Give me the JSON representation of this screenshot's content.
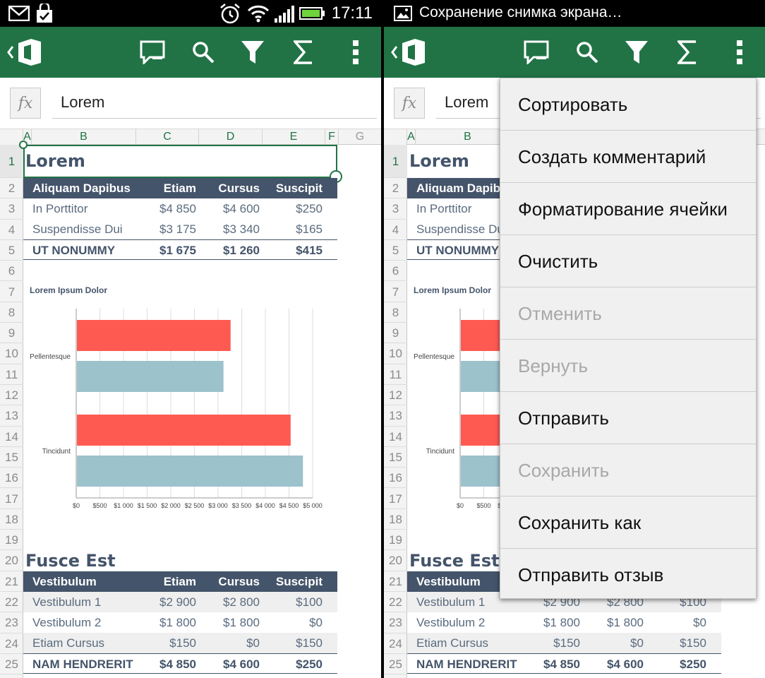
{
  "left_status": {
    "time": "17:11"
  },
  "right_status": {
    "notification": "Сохранение снимка экрана…"
  },
  "toolbar": {
    "back": "back-icon",
    "office": "office-logo-icon",
    "comment": "comment-icon",
    "search": "search-icon",
    "filter": "filter-icon",
    "sum": "sum-icon",
    "more": "more-icon"
  },
  "formula_bar": {
    "fx_label": "fx",
    "value": "Lorem"
  },
  "columns": [
    "A",
    "B",
    "C",
    "D",
    "E",
    "F",
    "G"
  ],
  "rows": [
    "1",
    "2",
    "3",
    "4",
    "5",
    "6",
    "7",
    "8",
    "9",
    "10",
    "11",
    "12",
    "13",
    "14",
    "15",
    "16",
    "17",
    "18",
    "19",
    "20",
    "21",
    "22",
    "23",
    "24",
    "25"
  ],
  "section1": {
    "title": "Lorem",
    "header": [
      "Aliquam Dapibus",
      "Etiam",
      "Cursus",
      "Suscipit"
    ],
    "rows": [
      [
        "In Porttitor",
        "$4 850",
        "$4 600",
        "$250"
      ],
      [
        "Suspendisse Dui",
        "$3 175",
        "$3 340",
        "$165"
      ]
    ],
    "total": [
      "UT NONUMMY",
      "$1 675",
      "$1 260",
      "$415"
    ]
  },
  "chart_data": {
    "type": "bar",
    "orientation": "horizontal",
    "title": "Lorem Ipsum Dolor",
    "categories": [
      "Pellentesque",
      "Tincidunt"
    ],
    "series": [
      {
        "values": [
          3250,
          4520
        ],
        "color": "#ff5a52"
      },
      {
        "values": [
          3100,
          4780
        ],
        "color": "#9cc2cc"
      }
    ],
    "xlim": [
      0,
      5000
    ],
    "x_ticks": [
      "$0",
      "$500",
      "$1 000",
      "$1 500",
      "$2 000",
      "$2 500",
      "$3 000",
      "$3 500",
      "$4 000",
      "$4 500",
      "$5 000"
    ],
    "grid": true
  },
  "section2": {
    "title": "Fusce Est",
    "header": [
      "Vestibulum",
      "Etiam",
      "Cursus",
      "Suscipit"
    ],
    "rows": [
      [
        "Vestibulum 1",
        "$2 900",
        "$2 800",
        "$100"
      ],
      [
        "Vestibulum 2",
        "$1 800",
        "$1 800",
        "$0"
      ],
      [
        "Etiam Cursus",
        "$150",
        "$0",
        "$150"
      ]
    ],
    "total": [
      "NAM HENDRERIT",
      "$4 850",
      "$4 600",
      "$250"
    ]
  },
  "context_menu": {
    "items": [
      {
        "label": "Сортировать",
        "enabled": true
      },
      {
        "label": "Создать комментарий",
        "enabled": true
      },
      {
        "label": "Форматирование ячейки",
        "enabled": true
      },
      {
        "label": "Очистить",
        "enabled": true
      },
      {
        "label": "Отменить",
        "enabled": false
      },
      {
        "label": "Вернуть",
        "enabled": false
      },
      {
        "label": "Отправить",
        "enabled": true
      },
      {
        "label": "Сохранить",
        "enabled": false
      },
      {
        "label": "Сохранить как",
        "enabled": true
      },
      {
        "label": "Отправить отзыв",
        "enabled": true
      }
    ]
  },
  "colors": {
    "app_green": "#217346",
    "table_header": "#44546a",
    "selection": "#217346"
  }
}
